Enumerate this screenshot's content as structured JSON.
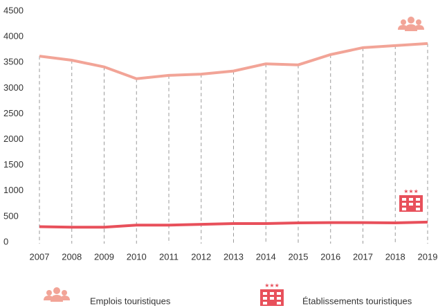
{
  "chart_data": {
    "type": "line",
    "categories": [
      "2007",
      "2008",
      "2009",
      "2010",
      "2011",
      "2012",
      "2013",
      "2014",
      "2015",
      "2016",
      "2017",
      "2018",
      "2019"
    ],
    "series": [
      {
        "name": "Emplois touristiques",
        "color": "#f2a497",
        "values": [
          3650,
          3570,
          3440,
          3210,
          3275,
          3300,
          3360,
          3500,
          3480,
          3680,
          3815,
          3855,
          3895
        ]
      },
      {
        "name": "Établissements touristiques",
        "color": "#e8505b",
        "values": [
          330,
          320,
          320,
          360,
          360,
          375,
          390,
          390,
          405,
          410,
          410,
          405,
          420
        ]
      }
    ],
    "ylim": [
      0,
      4500
    ],
    "yticks": [
      0,
      500,
      1000,
      1500,
      2000,
      2500,
      3000,
      3500,
      4000,
      4500
    ]
  }
}
